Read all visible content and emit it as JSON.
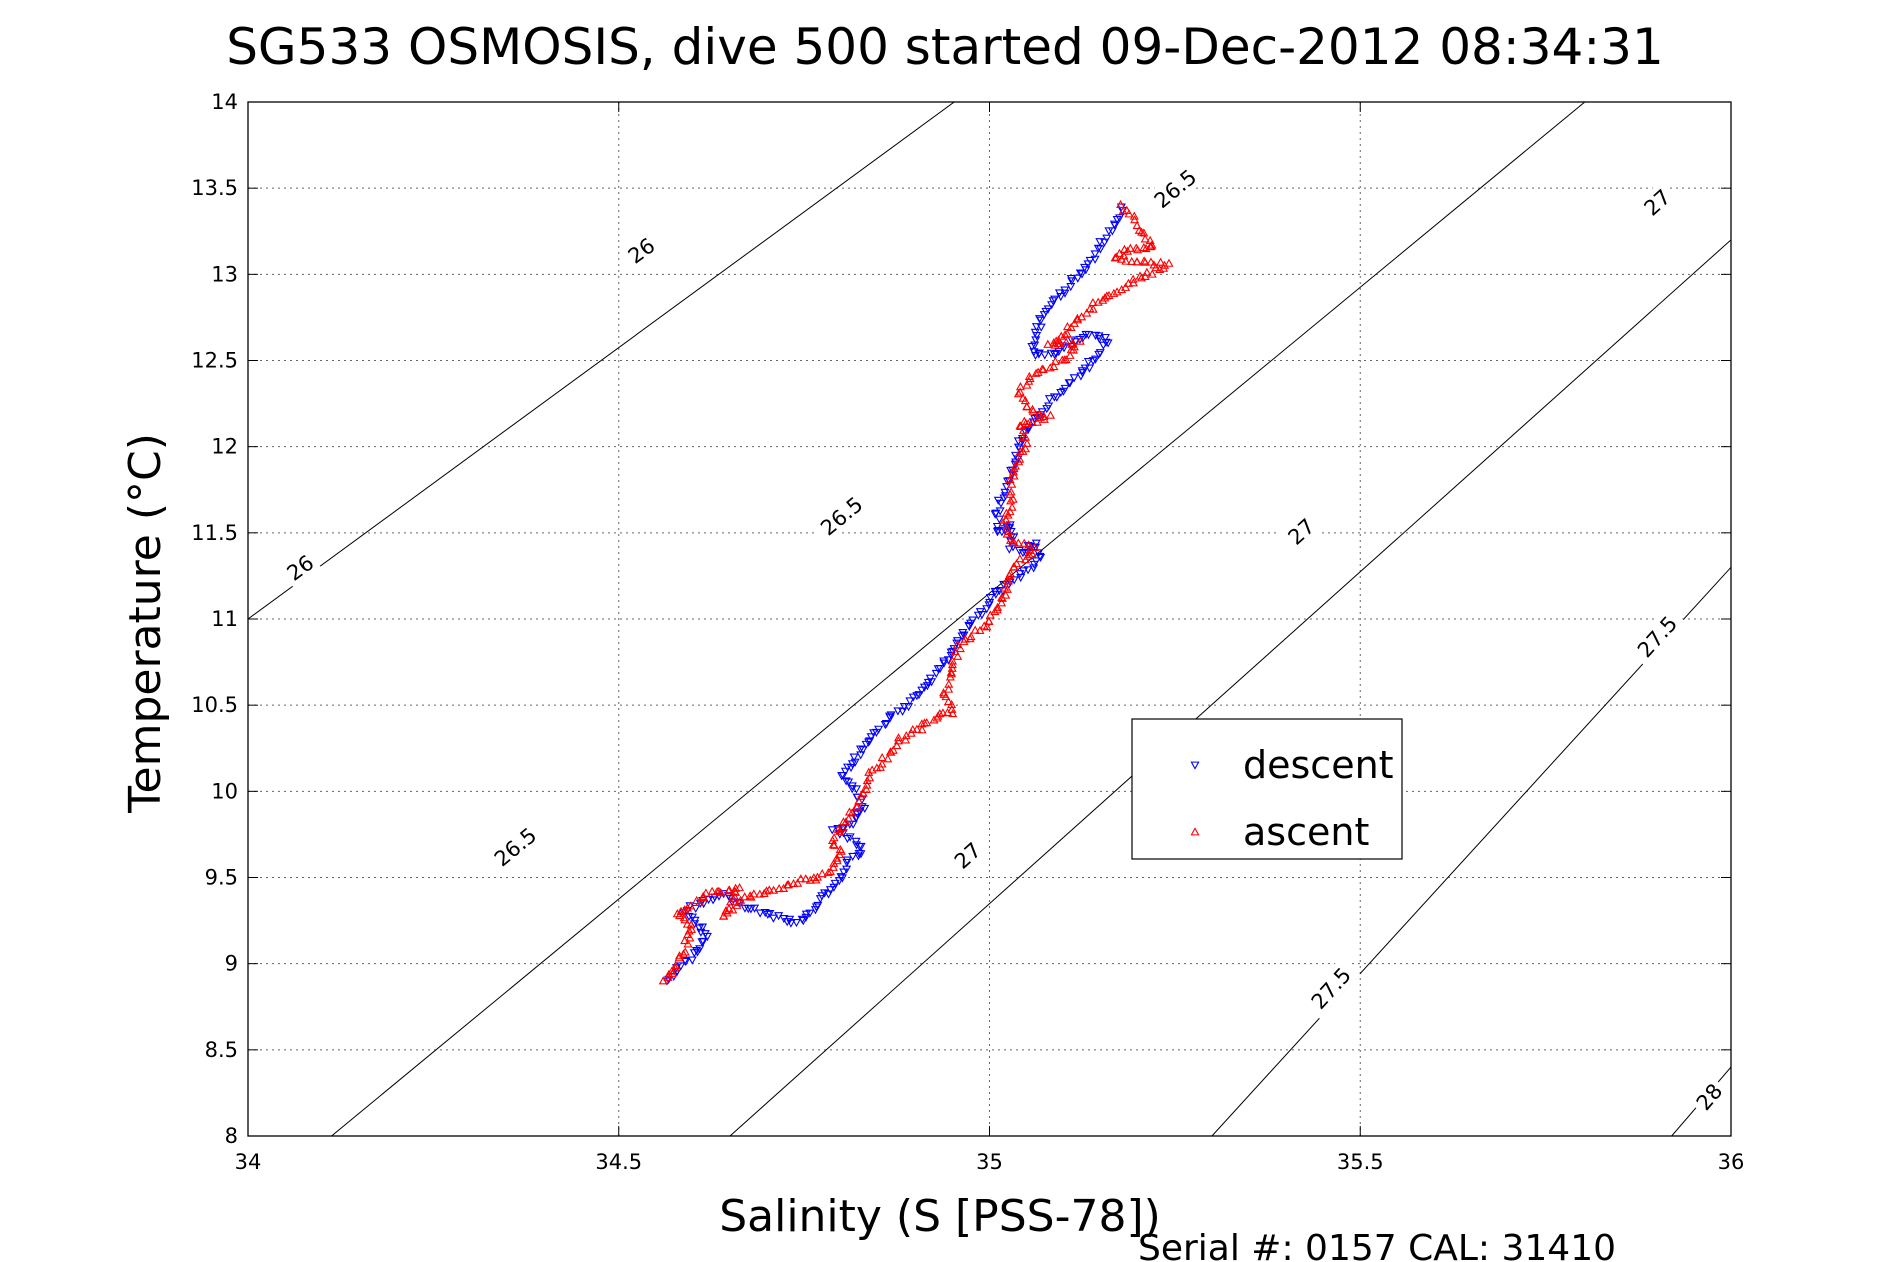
{
  "chart_data": {
    "type": "scatter",
    "title": "SG533 OSMOSIS, dive 500 started 09-Dec-2012 08:34:31",
    "xlabel": "Salinity (S [PSS-78])",
    "ylabel": "Temperature (°C)",
    "xlim": [
      34,
      36
    ],
    "ylim": [
      8,
      14
    ],
    "xticks": [
      "34",
      "34.5",
      "35",
      "35.5",
      "36"
    ],
    "yticks": [
      "8",
      "8.5",
      "9",
      "9.5",
      "10",
      "10.5",
      "11",
      "11.5",
      "12",
      "12.5",
      "13",
      "13.5",
      "14"
    ],
    "grid": true,
    "legend_position": "center-right",
    "footer": "Serial #: 0157  CAL: 31410",
    "contours": [
      {
        "level": "26",
        "points": [
          [
            34.0,
            11.0
          ],
          [
            36.0,
            17.3
          ]
        ],
        "labels": [
          [
            34.07,
            11.3
          ],
          [
            34.53,
            13.14
          ]
        ]
      },
      {
        "level": "26.5",
        "points": [
          [
            34.0,
            7.6
          ],
          [
            36.0,
            14.7
          ]
        ],
        "labels": [
          [
            34.36,
            9.68
          ],
          [
            34.8,
            11.6
          ],
          [
            35.25,
            13.5
          ]
        ]
      },
      {
        "level": "27",
        "points": [
          [
            34.65,
            8.0
          ],
          [
            36.0,
            13.2
          ]
        ],
        "labels": [
          [
            34.97,
            9.63
          ],
          [
            35.42,
            11.51
          ],
          [
            35.9,
            13.42
          ]
        ]
      },
      {
        "level": "27.5",
        "points": [
          [
            35.3,
            8.0
          ],
          [
            36.0,
            11.3
          ]
        ],
        "labels": [
          [
            35.46,
            8.86
          ],
          [
            35.9,
            10.9
          ]
        ]
      },
      {
        "level": "28",
        "points": [
          [
            35.92,
            8.0
          ],
          [
            36.0,
            8.4
          ]
        ],
        "labels": [
          [
            35.97,
            8.23
          ]
        ]
      }
    ],
    "series": [
      {
        "name": "descent",
        "color": "#0000ff",
        "marker": "triangle-down",
        "path": [
          [
            35.18,
            13.38
          ],
          [
            35.17,
            13.3
          ],
          [
            35.14,
            13.1
          ],
          [
            35.11,
            12.95
          ],
          [
            35.09,
            12.85
          ],
          [
            35.07,
            12.75
          ],
          [
            35.06,
            12.62
          ],
          [
            35.06,
            12.52
          ],
          [
            35.09,
            12.55
          ],
          [
            35.13,
            12.65
          ],
          [
            35.16,
            12.62
          ],
          [
            35.14,
            12.5
          ],
          [
            35.12,
            12.4
          ],
          [
            35.09,
            12.3
          ],
          [
            35.07,
            12.2
          ],
          [
            35.05,
            12.1
          ],
          [
            35.04,
            12.0
          ],
          [
            35.03,
            11.85
          ],
          [
            35.02,
            11.75
          ],
          [
            35.01,
            11.62
          ],
          [
            35.01,
            11.5
          ],
          [
            35.03,
            11.55
          ],
          [
            35.03,
            11.42
          ],
          [
            35.05,
            11.38
          ],
          [
            35.06,
            11.45
          ],
          [
            35.07,
            11.35
          ],
          [
            35.03,
            11.22
          ],
          [
            35.01,
            11.15
          ],
          [
            34.98,
            11.0
          ],
          [
            34.96,
            10.9
          ],
          [
            34.95,
            10.8
          ],
          [
            34.93,
            10.7
          ],
          [
            34.91,
            10.6
          ],
          [
            34.89,
            10.5
          ],
          [
            34.87,
            10.45
          ],
          [
            34.85,
            10.35
          ],
          [
            34.83,
            10.25
          ],
          [
            34.81,
            10.15
          ],
          [
            34.8,
            10.1
          ],
          [
            34.82,
            10.0
          ],
          [
            34.83,
            9.9
          ],
          [
            34.81,
            9.8
          ],
          [
            34.79,
            9.78
          ],
          [
            34.82,
            9.72
          ],
          [
            34.83,
            9.65
          ],
          [
            34.81,
            9.6
          ],
          [
            34.8,
            9.5
          ],
          [
            34.78,
            9.4
          ],
          [
            34.76,
            9.3
          ],
          [
            34.74,
            9.23
          ],
          [
            34.66,
            9.35
          ],
          [
            34.64,
            9.4
          ],
          [
            34.62,
            9.38
          ],
          [
            34.59,
            9.3
          ],
          [
            34.6,
            9.25
          ],
          [
            34.62,
            9.15
          ],
          [
            34.6,
            9.05
          ],
          [
            34.58,
            8.98
          ],
          [
            34.57,
            8.92
          ],
          [
            34.565,
            8.9
          ]
        ]
      },
      {
        "name": "ascent",
        "color": "#ff0000",
        "marker": "triangle-up",
        "path": [
          [
            35.18,
            13.4
          ],
          [
            35.22,
            13.15
          ],
          [
            35.19,
            13.16
          ],
          [
            35.17,
            13.1
          ],
          [
            35.24,
            13.05
          ],
          [
            35.2,
            12.98
          ],
          [
            35.15,
            12.85
          ],
          [
            35.12,
            12.75
          ],
          [
            35.1,
            12.65
          ],
          [
            35.08,
            12.58
          ],
          [
            35.12,
            12.6
          ],
          [
            35.1,
            12.5
          ],
          [
            35.07,
            12.45
          ],
          [
            35.05,
            12.38
          ],
          [
            35.04,
            12.3
          ],
          [
            35.05,
            12.22
          ],
          [
            35.08,
            12.18
          ],
          [
            35.06,
            12.14
          ],
          [
            35.04,
            12.13
          ],
          [
            35.05,
            12.02
          ],
          [
            35.04,
            11.92
          ],
          [
            35.03,
            11.8
          ],
          [
            35.03,
            11.65
          ],
          [
            35.02,
            11.55
          ],
          [
            35.03,
            11.45
          ],
          [
            35.06,
            11.4
          ],
          [
            35.05,
            11.36
          ],
          [
            35.03,
            11.3
          ],
          [
            35.02,
            11.15
          ],
          [
            35.01,
            11.05
          ],
          [
            34.99,
            10.95
          ],
          [
            34.96,
            10.85
          ],
          [
            34.95,
            10.72
          ],
          [
            34.94,
            10.58
          ],
          [
            34.95,
            10.45
          ],
          [
            34.93,
            10.45
          ],
          [
            34.91,
            10.38
          ],
          [
            34.88,
            10.3
          ],
          [
            34.86,
            10.2
          ],
          [
            34.84,
            10.1
          ],
          [
            34.83,
            10.0
          ],
          [
            34.82,
            9.9
          ],
          [
            34.8,
            9.8
          ],
          [
            34.79,
            9.72
          ],
          [
            34.8,
            9.62
          ],
          [
            34.79,
            9.55
          ],
          [
            34.77,
            9.5
          ],
          [
            34.74,
            9.48
          ],
          [
            34.7,
            9.42
          ],
          [
            34.68,
            9.4
          ],
          [
            34.66,
            9.35
          ],
          [
            34.64,
            9.27
          ],
          [
            34.66,
            9.45
          ],
          [
            34.62,
            9.4
          ],
          [
            34.58,
            9.3
          ],
          [
            34.6,
            9.2
          ],
          [
            34.59,
            9.1
          ],
          [
            34.58,
            9.0
          ],
          [
            34.57,
            8.95
          ],
          [
            34.56,
            8.9
          ]
        ]
      }
    ]
  }
}
